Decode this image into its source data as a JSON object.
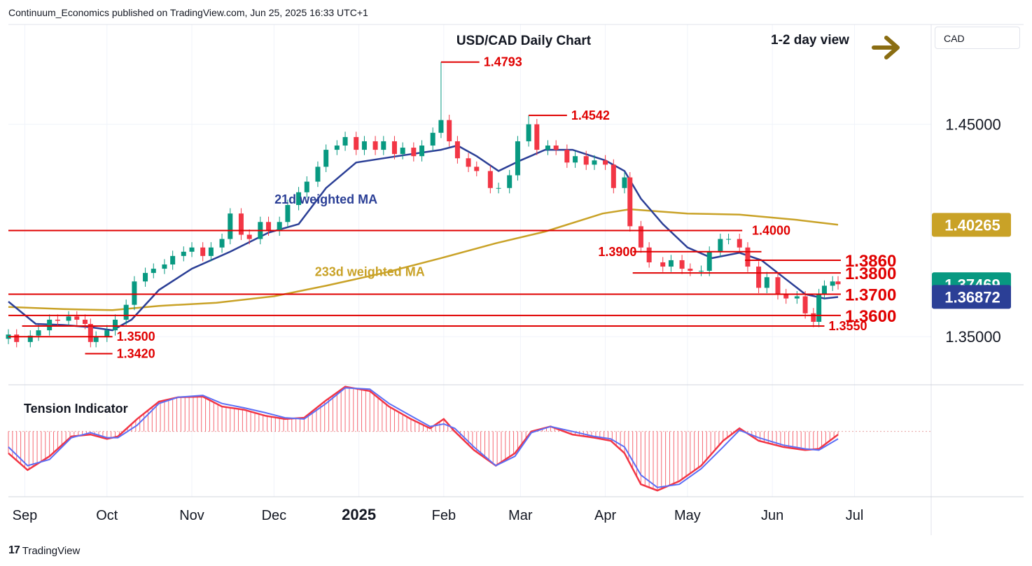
{
  "header": {
    "published_line": "Continuum_Economics published on TradingView.com, Jun 25, 2025 16:33 UTC+1"
  },
  "brand": {
    "name": "TradingView",
    "logo_text": "17"
  },
  "currency_box": "CAD",
  "colors": {
    "up": "#089981",
    "down": "#f23645",
    "ma21": "#2b3f96",
    "ma233": "#c9a227",
    "level": "#e00000",
    "arrow": "#8a6d12",
    "tension_blue": "#5b6ef5",
    "tension_red": "#f23645"
  },
  "chart_data": [
    {
      "type": "candlestick",
      "title": "USD/CAD Daily Chart",
      "view_label": "1-2 day view",
      "view_direction": "arrow-right-icon",
      "x_axis_labels": [
        "Sep",
        "Oct",
        "Nov",
        "Dec",
        "2025",
        "Feb",
        "Mar",
        "Apr",
        "May",
        "Jun",
        "Jul"
      ],
      "x_axis_dates": [
        "2024-09-01",
        "2024-10-01",
        "2024-11-01",
        "2024-12-01",
        "2025-01-01",
        "2025-02-01",
        "2025-03-01",
        "2025-04-01",
        "2025-05-01",
        "2025-06-01",
        "2025-07-01"
      ],
      "x_range": [
        "2024-08-26",
        "2025-07-29"
      ],
      "y_ticks": [
        "1.45000",
        "1.35000"
      ],
      "y_tick_values": [
        1.45,
        1.35
      ],
      "ylim": [
        1.328,
        1.497
      ],
      "price_badges": [
        {
          "label": "1.40265",
          "value": 1.40265,
          "color": "#c9a227"
        },
        {
          "label": "1.37469",
          "value": 1.37469,
          "color": "#089981"
        },
        {
          "label": "1.36872",
          "value": 1.36872,
          "color": "#2b3f96"
        }
      ],
      "levels": [
        {
          "label": "1.4793",
          "value": 1.4793,
          "from": "2025-01-31",
          "to": "2025-02-14",
          "label_at": "2025-02-14"
        },
        {
          "label": "1.4542",
          "value": 1.4542,
          "from": "2025-03-04",
          "to": "2025-03-18",
          "label_at": "2025-03-18"
        },
        {
          "label": "1.4000",
          "value": 1.4,
          "from": "2024-08-26",
          "to": "2025-05-21",
          "label_at": "2025-05-23"
        },
        {
          "label": "1.3900",
          "value": 1.39,
          "from": "2025-04-11",
          "to": "2025-05-28",
          "label_at": "2025-04-14",
          "label_side": "left"
        },
        {
          "label": "1.3860",
          "value": 1.386,
          "from": "2025-05-22",
          "to": "2025-06-26",
          "label_at": "2025-06-26",
          "big": true
        },
        {
          "label": "1.3800",
          "value": 1.38,
          "from": "2025-04-11",
          "to": "2025-06-26",
          "label_at": "2025-06-26",
          "big": true
        },
        {
          "label": "1.3700",
          "value": 1.37,
          "from": "2024-08-26",
          "to": "2025-06-26",
          "label_at": "2025-06-26",
          "big": true
        },
        {
          "label": "1.3600",
          "value": 1.36,
          "from": "2024-08-26",
          "to": "2025-06-26",
          "label_at": "2025-06-26",
          "big": true
        },
        {
          "label": "1.3550",
          "value": 1.355,
          "from": "2024-08-31",
          "to": "2025-06-20",
          "label_at": "2025-06-20"
        },
        {
          "label": "1.3500",
          "value": 1.35,
          "from": "2024-08-26",
          "to": "2024-10-03",
          "label_at": "2024-10-03"
        },
        {
          "label": "1.3420",
          "value": 1.342,
          "from": "2024-09-23",
          "to": "2024-10-03",
          "label_at": "2024-10-03"
        }
      ],
      "annotations": [
        {
          "text": "21d weighted MA",
          "date": "2024-12-20",
          "value": 1.4126,
          "color": "#2b3f96"
        },
        {
          "text": "233d weighted MA",
          "date": "2025-01-05",
          "value": 1.3785,
          "color": "#c9a227"
        }
      ],
      "closes": [
        [
          "2024-08-26",
          1.351
        ],
        [
          "2024-08-29",
          1.3475
        ],
        [
          "2024-09-03",
          1.3505
        ],
        [
          "2024-09-06",
          1.353
        ],
        [
          "2024-09-10",
          1.358
        ],
        [
          "2024-09-13",
          1.3575
        ],
        [
          "2024-09-17",
          1.3595
        ],
        [
          "2024-09-20",
          1.358
        ],
        [
          "2024-09-23",
          1.356
        ],
        [
          "2024-09-25",
          1.3475
        ],
        [
          "2024-09-27",
          1.35
        ],
        [
          "2024-10-01",
          1.353
        ],
        [
          "2024-10-04",
          1.358
        ],
        [
          "2024-10-08",
          1.365
        ],
        [
          "2024-10-11",
          1.376
        ],
        [
          "2024-10-15",
          1.38
        ],
        [
          "2024-10-18",
          1.382
        ],
        [
          "2024-10-22",
          1.384
        ],
        [
          "2024-10-25",
          1.388
        ],
        [
          "2024-10-29",
          1.39
        ],
        [
          "2024-11-01",
          1.392
        ],
        [
          "2024-11-05",
          1.388
        ],
        [
          "2024-11-08",
          1.392
        ],
        [
          "2024-11-12",
          1.396
        ],
        [
          "2024-11-15",
          1.408
        ],
        [
          "2024-11-19",
          1.398
        ],
        [
          "2024-11-22",
          1.396
        ],
        [
          "2024-11-26",
          1.404
        ],
        [
          "2024-11-29",
          1.4
        ],
        [
          "2024-12-03",
          1.404
        ],
        [
          "2024-12-06",
          1.412
        ],
        [
          "2024-12-10",
          1.418
        ],
        [
          "2024-12-13",
          1.423
        ],
        [
          "2024-12-17",
          1.43
        ],
        [
          "2024-12-20",
          1.438
        ],
        [
          "2024-12-24",
          1.44
        ],
        [
          "2024-12-27",
          1.444
        ],
        [
          "2024-12-31",
          1.438
        ],
        [
          "2025-01-03",
          1.442
        ],
        [
          "2025-01-07",
          1.438
        ],
        [
          "2025-01-10",
          1.442
        ],
        [
          "2025-01-14",
          1.436
        ],
        [
          "2025-01-17",
          1.439
        ],
        [
          "2025-01-21",
          1.435
        ],
        [
          "2025-01-24",
          1.44
        ],
        [
          "2025-01-28",
          1.446
        ],
        [
          "2025-01-31",
          1.452
        ],
        [
          "2025-02-03",
          1.442
        ],
        [
          "2025-02-06",
          1.434
        ],
        [
          "2025-02-10",
          1.43
        ],
        [
          "2025-02-13",
          1.428
        ],
        [
          "2025-02-18",
          1.42
        ],
        [
          "2025-02-21",
          1.42
        ],
        [
          "2025-02-25",
          1.426
        ],
        [
          "2025-02-28",
          1.442
        ],
        [
          "2025-03-04",
          1.45
        ],
        [
          "2025-03-07",
          1.438
        ],
        [
          "2025-03-11",
          1.44
        ],
        [
          "2025-03-14",
          1.438
        ],
        [
          "2025-03-18",
          1.432
        ],
        [
          "2025-03-21",
          1.435
        ],
        [
          "2025-03-25",
          1.431
        ],
        [
          "2025-03-28",
          1.433
        ],
        [
          "2025-04-01",
          1.431
        ],
        [
          "2025-04-04",
          1.42
        ],
        [
          "2025-04-08",
          1.425
        ],
        [
          "2025-04-10",
          1.402
        ],
        [
          "2025-04-14",
          1.392
        ],
        [
          "2025-04-17",
          1.385
        ],
        [
          "2025-04-22",
          1.383
        ],
        [
          "2025-04-25",
          1.386
        ],
        [
          "2025-04-29",
          1.382
        ],
        [
          "2025-05-02",
          1.381
        ],
        [
          "2025-05-06",
          1.381
        ],
        [
          "2025-05-09",
          1.39
        ],
        [
          "2025-05-13",
          1.396
        ],
        [
          "2025-05-16",
          1.396
        ],
        [
          "2025-05-20",
          1.392
        ],
        [
          "2025-05-23",
          1.383
        ],
        [
          "2025-05-27",
          1.373
        ],
        [
          "2025-05-30",
          1.378
        ],
        [
          "2025-06-03",
          1.37
        ],
        [
          "2025-06-06",
          1.368
        ],
        [
          "2025-06-10",
          1.369
        ],
        [
          "2025-06-13",
          1.361
        ],
        [
          "2025-06-16",
          1.357
        ],
        [
          "2025-06-18",
          1.37
        ],
        [
          "2025-06-20",
          1.374
        ],
        [
          "2025-06-23",
          1.376
        ],
        [
          "2025-06-25",
          1.3747
        ]
      ],
      "highlight_highs": [
        [
          "2025-01-31",
          1.4793
        ],
        [
          "2025-03-04",
          1.4542
        ]
      ],
      "ma21": [
        [
          "2024-08-26",
          1.3665
        ],
        [
          "2024-09-05",
          1.356
        ],
        [
          "2024-09-15",
          1.3555
        ],
        [
          "2024-09-25",
          1.3545
        ],
        [
          "2024-10-03",
          1.353
        ],
        [
          "2024-10-10",
          1.358
        ],
        [
          "2024-10-20",
          1.372
        ],
        [
          "2024-11-01",
          1.382
        ],
        [
          "2024-11-15",
          1.39
        ],
        [
          "2024-11-29",
          1.399
        ],
        [
          "2024-12-10",
          1.403
        ],
        [
          "2024-12-20",
          1.42
        ],
        [
          "2024-12-31",
          1.432
        ],
        [
          "2025-01-15",
          1.435
        ],
        [
          "2025-01-31",
          1.438
        ],
        [
          "2025-02-06",
          1.44
        ],
        [
          "2025-02-13",
          1.435
        ],
        [
          "2025-02-21",
          1.428
        ],
        [
          "2025-03-01",
          1.433
        ],
        [
          "2025-03-10",
          1.438
        ],
        [
          "2025-03-20",
          1.438
        ],
        [
          "2025-04-01",
          1.433
        ],
        [
          "2025-04-08",
          1.428
        ],
        [
          "2025-04-14",
          1.415
        ],
        [
          "2025-04-22",
          1.403
        ],
        [
          "2025-05-01",
          1.392
        ],
        [
          "2025-05-10",
          1.387
        ],
        [
          "2025-05-20",
          1.3895
        ],
        [
          "2025-05-28",
          1.386
        ],
        [
          "2025-06-05",
          1.378
        ],
        [
          "2025-06-13",
          1.37
        ],
        [
          "2025-06-20",
          1.368
        ],
        [
          "2025-06-25",
          1.3687
        ]
      ],
      "ma233": [
        [
          "2024-08-26",
          1.364
        ],
        [
          "2024-09-15",
          1.363
        ],
        [
          "2024-10-03",
          1.3625
        ],
        [
          "2024-10-20",
          1.3645
        ],
        [
          "2024-11-10",
          1.366
        ],
        [
          "2024-12-01",
          1.369
        ],
        [
          "2024-12-20",
          1.374
        ],
        [
          "2025-01-10",
          1.38
        ],
        [
          "2025-01-31",
          1.387
        ],
        [
          "2025-02-20",
          1.394
        ],
        [
          "2025-03-10",
          1.3995
        ],
        [
          "2025-03-31",
          1.408
        ],
        [
          "2025-04-10",
          1.41
        ],
        [
          "2025-05-01",
          1.408
        ],
        [
          "2025-05-20",
          1.4075
        ],
        [
          "2025-06-10",
          1.405
        ],
        [
          "2025-06-25",
          1.4027
        ]
      ]
    },
    {
      "type": "area",
      "title": "Tension Indicator",
      "ylim": [
        -1.05,
        0.75
      ],
      "zero_line": 0,
      "red": [
        [
          "2024-08-26",
          -0.35
        ],
        [
          "2024-09-02",
          -0.62
        ],
        [
          "2024-09-10",
          -0.4
        ],
        [
          "2024-09-18",
          -0.08
        ],
        [
          "2024-09-25",
          -0.05
        ],
        [
          "2024-10-01",
          -0.12
        ],
        [
          "2024-10-05",
          -0.08
        ],
        [
          "2024-10-12",
          0.2
        ],
        [
          "2024-10-20",
          0.48
        ],
        [
          "2024-10-27",
          0.55
        ],
        [
          "2024-11-05",
          0.56
        ],
        [
          "2024-11-12",
          0.4
        ],
        [
          "2024-11-20",
          0.35
        ],
        [
          "2024-11-28",
          0.25
        ],
        [
          "2024-12-05",
          0.2
        ],
        [
          "2024-12-12",
          0.22
        ],
        [
          "2024-12-20",
          0.5
        ],
        [
          "2024-12-27",
          0.72
        ],
        [
          "2025-01-05",
          0.65
        ],
        [
          "2025-01-12",
          0.4
        ],
        [
          "2025-01-20",
          0.2
        ],
        [
          "2025-01-27",
          0.05
        ],
        [
          "2025-02-01",
          0.2
        ],
        [
          "2025-02-05",
          0.0
        ],
        [
          "2025-02-12",
          -0.3
        ],
        [
          "2025-02-20",
          -0.55
        ],
        [
          "2025-02-27",
          -0.35
        ],
        [
          "2025-03-05",
          0.0
        ],
        [
          "2025-03-12",
          0.08
        ],
        [
          "2025-03-20",
          -0.05
        ],
        [
          "2025-03-28",
          -0.1
        ],
        [
          "2025-04-03",
          -0.15
        ],
        [
          "2025-04-08",
          -0.35
        ],
        [
          "2025-04-14",
          -0.85
        ],
        [
          "2025-04-20",
          -0.95
        ],
        [
          "2025-04-28",
          -0.8
        ],
        [
          "2025-05-06",
          -0.55
        ],
        [
          "2025-05-14",
          -0.15
        ],
        [
          "2025-05-20",
          0.05
        ],
        [
          "2025-05-27",
          -0.15
        ],
        [
          "2025-06-05",
          -0.25
        ],
        [
          "2025-06-13",
          -0.3
        ],
        [
          "2025-06-18",
          -0.28
        ],
        [
          "2025-06-25",
          -0.05
        ]
      ],
      "blue": [
        [
          "2024-08-26",
          -0.25
        ],
        [
          "2024-09-02",
          -0.55
        ],
        [
          "2024-09-10",
          -0.45
        ],
        [
          "2024-09-18",
          -0.1
        ],
        [
          "2024-09-25",
          -0.02
        ],
        [
          "2024-10-01",
          -0.1
        ],
        [
          "2024-10-05",
          -0.1
        ],
        [
          "2024-10-12",
          0.1
        ],
        [
          "2024-10-20",
          0.45
        ],
        [
          "2024-10-27",
          0.55
        ],
        [
          "2024-11-05",
          0.58
        ],
        [
          "2024-11-12",
          0.45
        ],
        [
          "2024-11-20",
          0.38
        ],
        [
          "2024-11-28",
          0.3
        ],
        [
          "2024-12-05",
          0.22
        ],
        [
          "2024-12-12",
          0.2
        ],
        [
          "2024-12-20",
          0.45
        ],
        [
          "2024-12-27",
          0.7
        ],
        [
          "2025-01-05",
          0.68
        ],
        [
          "2025-01-12",
          0.45
        ],
        [
          "2025-01-20",
          0.25
        ],
        [
          "2025-01-27",
          0.08
        ],
        [
          "2025-02-01",
          0.12
        ],
        [
          "2025-02-05",
          0.05
        ],
        [
          "2025-02-12",
          -0.25
        ],
        [
          "2025-02-20",
          -0.55
        ],
        [
          "2025-02-27",
          -0.4
        ],
        [
          "2025-03-05",
          -0.02
        ],
        [
          "2025-03-12",
          0.08
        ],
        [
          "2025-03-20",
          0.0
        ],
        [
          "2025-03-28",
          -0.08
        ],
        [
          "2025-04-03",
          -0.12
        ],
        [
          "2025-04-08",
          -0.25
        ],
        [
          "2025-04-14",
          -0.7
        ],
        [
          "2025-04-20",
          -0.9
        ],
        [
          "2025-04-28",
          -0.85
        ],
        [
          "2025-05-06",
          -0.6
        ],
        [
          "2025-05-14",
          -0.25
        ],
        [
          "2025-05-20",
          0.02
        ],
        [
          "2025-05-27",
          -0.1
        ],
        [
          "2025-06-05",
          -0.22
        ],
        [
          "2025-06-13",
          -0.28
        ],
        [
          "2025-06-18",
          -0.3
        ],
        [
          "2025-06-25",
          -0.12
        ]
      ]
    }
  ]
}
